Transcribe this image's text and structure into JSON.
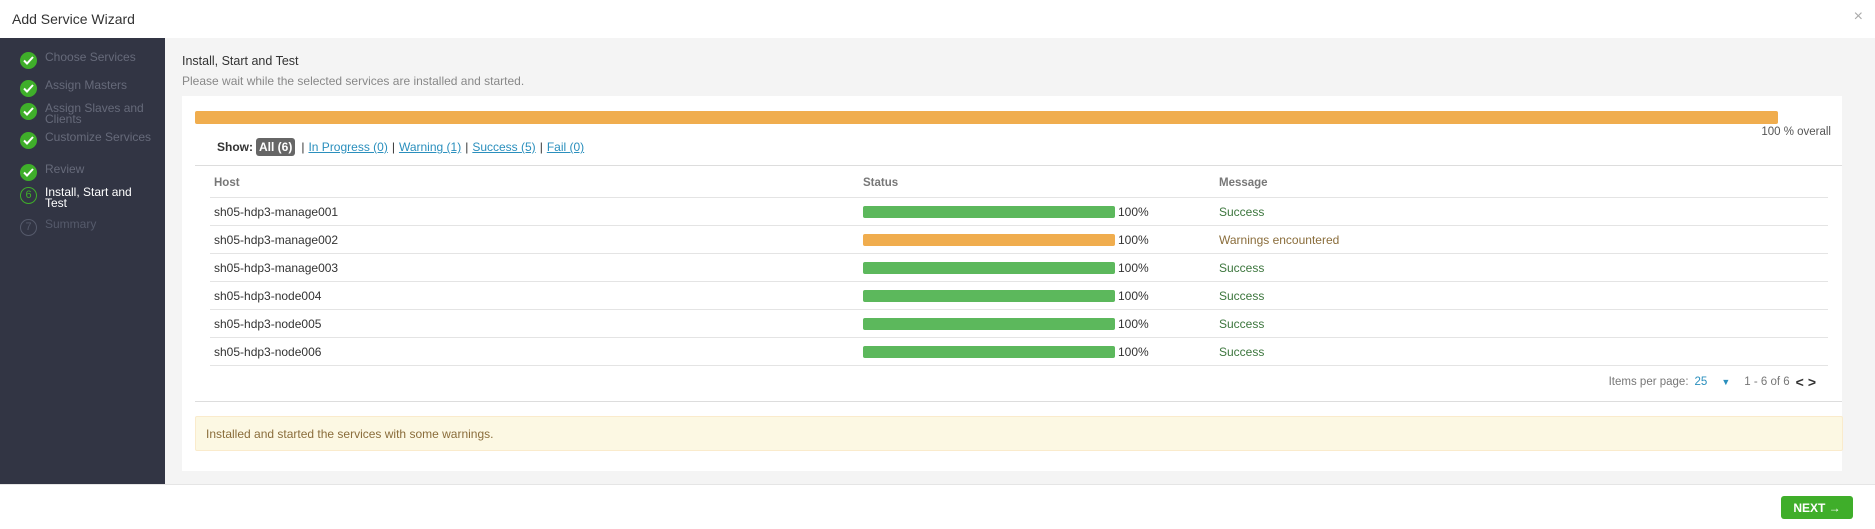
{
  "window": {
    "title": "Add Service Wizard",
    "close_glyph": "×"
  },
  "sidebar": {
    "steps": [
      {
        "label": "Choose Services",
        "state": "done"
      },
      {
        "label": "Assign Masters",
        "state": "done"
      },
      {
        "label": "Assign Slaves and Clients",
        "state": "done"
      },
      {
        "label": "Customize Services",
        "state": "done"
      },
      {
        "label": "Review",
        "state": "done"
      },
      {
        "label": "Install, Start and Test",
        "state": "active",
        "number": "6"
      },
      {
        "label": "Summary",
        "state": "future",
        "number": "7"
      }
    ]
  },
  "main": {
    "title": "Install, Start and Test",
    "subtitle": "Please wait while the selected services are installed and started.",
    "overall_progress": 100,
    "overall_text": "100 % overall",
    "filters": {
      "show_label": "Show:",
      "all": "All (6)",
      "in_progress": "In Progress (0)",
      "warning": "Warning (1)",
      "success": "Success (5)",
      "fail": "Fail (0)",
      "separator": "|"
    },
    "table": {
      "columns": {
        "host": "Host",
        "status": "Status",
        "message": "Message"
      },
      "rows": [
        {
          "host": "sh05-hdp3-manage001",
          "progress": 100,
          "pct": "100%",
          "message": "Success",
          "state": "success"
        },
        {
          "host": "sh05-hdp3-manage002",
          "progress": 100,
          "pct": "100%",
          "message": "Warnings encountered",
          "state": "warning"
        },
        {
          "host": "sh05-hdp3-manage003",
          "progress": 100,
          "pct": "100%",
          "message": "Success",
          "state": "success"
        },
        {
          "host": "sh05-hdp3-node004",
          "progress": 100,
          "pct": "100%",
          "message": "Success",
          "state": "success"
        },
        {
          "host": "sh05-hdp3-node005",
          "progress": 100,
          "pct": "100%",
          "message": "Success",
          "state": "success"
        },
        {
          "host": "sh05-hdp3-node006",
          "progress": 100,
          "pct": "100%",
          "message": "Success",
          "state": "success"
        }
      ]
    },
    "pager": {
      "items_per_page_label": "Items per page:",
      "items_per_page": "25",
      "range": "1 - 6 of 6"
    },
    "alert": "Installed and started the services with some warnings."
  },
  "footer": {
    "next_label": "NEXT →"
  },
  "colors": {
    "success": "#5cb85c",
    "warning": "#f0ad4e",
    "sidebar": "#323544",
    "accent": "#3fae2a"
  }
}
